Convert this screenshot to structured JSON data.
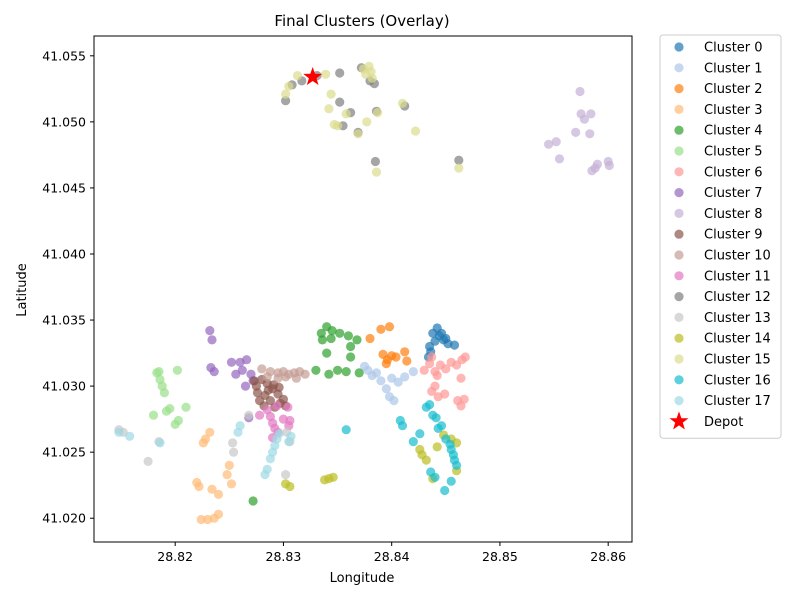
{
  "chart_data": {
    "type": "scatter",
    "title": "Final Clusters (Overlay)",
    "xlabel": "Longitude",
    "ylabel": "Latitude",
    "xlim": [
      28.8125,
      28.8622
    ],
    "ylim": [
      41.0182,
      41.0565
    ],
    "xticks": [
      "28.82",
      "28.83",
      "28.84",
      "28.85",
      "28.86"
    ],
    "yticks": [
      "41.020",
      "41.025",
      "41.030",
      "41.035",
      "41.040",
      "41.045",
      "41.050",
      "41.055"
    ],
    "grid": false,
    "legend_position": "outside-right",
    "series": [
      {
        "name": "Cluster 0",
        "color": "#1f77b4",
        "points": [
          [
            28.8435,
            41.033
          ],
          [
            28.8438,
            41.034
          ],
          [
            28.8442,
            41.0344
          ],
          [
            28.8446,
            41.034
          ],
          [
            28.845,
            41.0336
          ],
          [
            28.8452,
            41.0332
          ],
          [
            28.8436,
            41.0326
          ],
          [
            28.844,
            41.0334
          ],
          [
            28.8444,
            41.0338
          ],
          [
            28.8448,
            41.0335
          ],
          [
            28.8458,
            41.0331
          ],
          [
            28.8434,
            41.0322
          ]
        ]
      },
      {
        "name": "Cluster 1",
        "color": "#aec7e8",
        "points": [
          [
            28.8375,
            41.0315
          ],
          [
            28.8382,
            41.0308
          ],
          [
            28.839,
            41.0304
          ],
          [
            28.8395,
            41.0298
          ],
          [
            28.8398,
            41.0292
          ],
          [
            28.84,
            41.0306
          ],
          [
            28.8406,
            41.0303
          ],
          [
            28.8412,
            41.0307
          ],
          [
            28.842,
            41.0311
          ],
          [
            28.8378,
            41.0312
          ],
          [
            28.8386,
            41.031
          ],
          [
            28.8402,
            41.0289
          ]
        ]
      },
      {
        "name": "Cluster 2",
        "color": "#ff7f0e",
        "points": [
          [
            28.838,
            41.0336
          ],
          [
            28.8392,
            41.0324
          ],
          [
            28.8396,
            41.032
          ],
          [
            28.8398,
            41.0345
          ],
          [
            28.84,
            41.0323
          ],
          [
            28.8404,
            41.0322
          ],
          [
            28.8412,
            41.0326
          ],
          [
            28.8414,
            41.0319
          ],
          [
            28.839,
            41.0343
          ],
          [
            28.8395,
            41.0317
          ]
        ]
      },
      {
        "name": "Cluster 3",
        "color": "#ffbb78",
        "points": [
          [
            28.822,
            41.0227
          ],
          [
            28.8222,
            41.0224
          ],
          [
            28.8228,
            41.026
          ],
          [
            28.8232,
            41.0265
          ],
          [
            28.8234,
            41.0222
          ],
          [
            28.824,
            41.0218
          ],
          [
            28.8248,
            41.0233
          ],
          [
            28.825,
            41.024
          ],
          [
            28.8252,
            41.0226
          ],
          [
            28.8224,
            41.0199
          ],
          [
            28.823,
            41.0199
          ],
          [
            28.8236,
            41.02
          ],
          [
            28.824,
            41.0203
          ],
          [
            28.8226,
            41.0257
          ]
        ]
      },
      {
        "name": "Cluster 4",
        "color": "#2ca02c",
        "points": [
          [
            28.8335,
            41.034
          ],
          [
            28.834,
            41.0345
          ],
          [
            28.8345,
            41.0342
          ],
          [
            28.8352,
            41.034
          ],
          [
            28.836,
            41.0338
          ],
          [
            28.8362,
            41.033
          ],
          [
            28.8368,
            41.0335
          ],
          [
            28.834,
            41.0325
          ],
          [
            28.835,
            41.0312
          ],
          [
            28.8358,
            41.0311
          ],
          [
            28.8362,
            41.0322
          ],
          [
            28.837,
            41.031
          ],
          [
            28.8342,
            41.0309
          ],
          [
            28.833,
            41.0312
          ],
          [
            28.8336,
            41.0335
          ],
          [
            28.8344,
            41.0336
          ],
          [
            28.8272,
            41.0213
          ]
        ]
      },
      {
        "name": "Cluster 5",
        "color": "#98df8a",
        "points": [
          [
            28.8183,
            41.031
          ],
          [
            28.8186,
            41.0305
          ],
          [
            28.8188,
            41.03
          ],
          [
            28.819,
            41.0295
          ],
          [
            28.8192,
            41.0281
          ],
          [
            28.8195,
            41.0283
          ],
          [
            28.82,
            41.0271
          ],
          [
            28.8203,
            41.0274
          ],
          [
            28.821,
            41.0284
          ],
          [
            28.818,
            41.0278
          ],
          [
            28.8202,
            41.0312
          ],
          [
            28.8185,
            41.0311
          ]
        ]
      },
      {
        "name": "Cluster 6",
        "color": "#ff9896",
        "points": [
          [
            28.843,
            41.0312
          ],
          [
            28.8435,
            41.0317
          ],
          [
            28.844,
            41.0311
          ],
          [
            28.8445,
            41.0316
          ],
          [
            28.845,
            41.0313
          ],
          [
            28.8455,
            41.0318
          ],
          [
            28.846,
            41.0316
          ],
          [
            28.8465,
            41.032
          ],
          [
            28.8468,
            41.0322
          ],
          [
            28.844,
            41.03
          ],
          [
            28.8437,
            41.0296
          ],
          [
            28.8443,
            41.0292
          ],
          [
            28.8449,
            41.0294
          ],
          [
            28.8461,
            41.0289
          ],
          [
            28.8464,
            41.0285
          ],
          [
            28.8467,
            41.029
          ],
          [
            28.8464,
            41.0306
          ],
          [
            28.8442,
            41.0308
          ],
          [
            28.8437,
            41.0322
          ]
        ]
      },
      {
        "name": "Cluster 7",
        "color": "#9467bd",
        "points": [
          [
            28.8232,
            41.0342
          ],
          [
            28.8234,
            41.0335
          ],
          [
            28.8233,
            41.0314
          ],
          [
            28.8236,
            41.0311
          ],
          [
            28.8252,
            41.0318
          ],
          [
            28.826,
            41.0318
          ],
          [
            28.8266,
            41.032
          ],
          [
            28.8262,
            41.0312
          ],
          [
            28.827,
            41.0309
          ],
          [
            28.8256,
            41.0309
          ],
          [
            28.8265,
            41.03
          ],
          [
            28.8272,
            41.0304
          ],
          [
            28.8268,
            41.0276
          ]
        ]
      },
      {
        "name": "Cluster 8",
        "color": "#c5b0d5",
        "points": [
          [
            28.8545,
            41.0483
          ],
          [
            28.8552,
            41.0485
          ],
          [
            28.8555,
            41.0472
          ],
          [
            28.857,
            41.0492
          ],
          [
            28.8574,
            41.0523
          ],
          [
            28.8575,
            41.0506
          ],
          [
            28.8578,
            41.0502
          ],
          [
            28.8583,
            41.0491
          ],
          [
            28.8584,
            41.0506
          ],
          [
            28.8585,
            41.0463
          ],
          [
            28.8588,
            41.0465
          ],
          [
            28.859,
            41.0468
          ],
          [
            28.86,
            41.047
          ],
          [
            28.8601,
            41.0467
          ]
        ]
      },
      {
        "name": "Cluster 9",
        "color": "#8c564b",
        "points": [
          [
            28.8275,
            41.03
          ],
          [
            28.828,
            41.0305
          ],
          [
            28.8285,
            41.0302
          ],
          [
            28.829,
            41.0298
          ],
          [
            28.8295,
            41.0294
          ],
          [
            28.83,
            41.029
          ],
          [
            28.8283,
            41.0293
          ],
          [
            28.8288,
            41.0289
          ],
          [
            28.8278,
            41.0289
          ],
          [
            28.8282,
            41.0285
          ],
          [
            28.8292,
            41.0284
          ],
          [
            28.8297,
            41.0287
          ],
          [
            28.8276,
            41.0295
          ],
          [
            28.8286,
            41.0297
          ],
          [
            28.8302,
            41.0285
          ],
          [
            28.8273,
            41.0304
          ],
          [
            28.8291,
            41.0301
          ],
          [
            28.8296,
            41.0299
          ]
        ]
      },
      {
        "name": "Cluster 10",
        "color": "#c49c94",
        "points": [
          [
            28.828,
            41.0313
          ],
          [
            28.8288,
            41.0311
          ],
          [
            28.8295,
            41.031
          ],
          [
            28.83,
            41.0311
          ],
          [
            28.8305,
            41.0309
          ],
          [
            28.831,
            41.031
          ],
          [
            28.8315,
            41.0311
          ],
          [
            28.832,
            41.0309
          ],
          [
            28.8285,
            41.0307
          ],
          [
            28.8302,
            41.0307
          ],
          [
            28.8312,
            41.0306
          ],
          [
            28.8295,
            41.0306
          ]
        ]
      },
      {
        "name": "Cluster 11",
        "color": "#e377c2",
        "points": [
          [
            28.8285,
            41.0282
          ],
          [
            28.8288,
            41.0277
          ],
          [
            28.829,
            41.0272
          ],
          [
            28.8292,
            41.0268
          ],
          [
            28.8295,
            41.0265
          ],
          [
            28.83,
            41.0275
          ],
          [
            28.8305,
            41.027
          ],
          [
            28.8306,
            41.0274
          ],
          [
            28.8304,
            41.0284
          ],
          [
            28.829,
            41.0261
          ],
          [
            28.8294,
            41.0285
          ],
          [
            28.8278,
            41.0278
          ]
        ]
      },
      {
        "name": "Cluster 12",
        "color": "#7f7f7f",
        "points": [
          [
            28.8302,
            41.0516
          ],
          [
            28.8308,
            41.0528
          ],
          [
            28.8317,
            41.0531
          ],
          [
            28.8331,
            41.0535
          ],
          [
            28.8352,
            41.0537
          ],
          [
            28.8352,
            41.0515
          ],
          [
            28.8362,
            41.0507
          ],
          [
            28.8369,
            41.0492
          ],
          [
            28.8372,
            41.0541
          ],
          [
            28.838,
            41.0531
          ],
          [
            28.8384,
            41.0529
          ],
          [
            28.8385,
            41.047
          ],
          [
            28.8386,
            41.0508
          ],
          [
            28.8412,
            41.0512
          ],
          [
            28.8462,
            41.0471
          ],
          [
            28.8355,
            41.0497
          ]
        ]
      },
      {
        "name": "Cluster 13",
        "color": "#c7c7c7",
        "points": [
          [
            28.8148,
            41.0267
          ],
          [
            28.8152,
            41.0265
          ],
          [
            28.8175,
            41.0243
          ],
          [
            28.8185,
            41.0258
          ],
          [
            28.8253,
            41.0257
          ],
          [
            28.8254,
            41.025
          ],
          [
            28.8268,
            41.0278
          ],
          [
            28.8303,
            41.0265
          ],
          [
            28.8306,
            41.0258
          ],
          [
            28.8302,
            41.0233
          ]
        ]
      },
      {
        "name": "Cluster 14",
        "color": "#bcbd22",
        "points": [
          [
            28.8302,
            41.0226
          ],
          [
            28.8306,
            41.0224
          ],
          [
            28.8338,
            41.0229
          ],
          [
            28.8342,
            41.023
          ],
          [
            28.8346,
            41.0231
          ],
          [
            28.8426,
            41.0252
          ],
          [
            28.8428,
            41.0248
          ],
          [
            28.8432,
            41.0244
          ],
          [
            28.8438,
            41.023
          ],
          [
            28.8442,
            41.0254
          ],
          [
            28.8448,
            41.0263
          ],
          [
            28.8455,
            41.026
          ],
          [
            28.846,
            41.0257
          ],
          [
            28.846,
            41.0236
          ]
        ]
      },
      {
        "name": "Cluster 15",
        "color": "#dbdb8d",
        "points": [
          [
            28.8302,
            41.0521
          ],
          [
            28.8305,
            41.0527
          ],
          [
            28.8313,
            41.0535
          ],
          [
            28.8339,
            41.0536
          ],
          [
            28.8342,
            41.051
          ],
          [
            28.8344,
            41.0521
          ],
          [
            28.8347,
            41.0498
          ],
          [
            28.835,
            41.0497
          ],
          [
            28.8358,
            41.0506
          ],
          [
            28.8369,
            41.0491
          ],
          [
            28.8374,
            41.054
          ],
          [
            28.8376,
            41.0536
          ],
          [
            28.8377,
            41.05
          ],
          [
            28.8379,
            41.0542
          ],
          [
            28.8382,
            41.0533
          ],
          [
            28.8386,
            41.0462
          ],
          [
            28.8387,
            41.0507
          ],
          [
            28.841,
            41.0514
          ],
          [
            28.8422,
            41.0493
          ],
          [
            28.8462,
            41.0465
          ],
          [
            28.8381,
            41.0538
          ]
        ]
      },
      {
        "name": "Cluster 16",
        "color": "#17becf",
        "points": [
          [
            28.8408,
            41.0274
          ],
          [
            28.841,
            41.027
          ],
          [
            28.842,
            41.0258
          ],
          [
            28.8426,
            41.0264
          ],
          [
            28.8432,
            41.0284
          ],
          [
            28.8435,
            41.0286
          ],
          [
            28.8438,
            41.0278
          ],
          [
            28.8441,
            41.0276
          ],
          [
            28.8443,
            41.0268
          ],
          [
            28.8446,
            41.027
          ],
          [
            28.845,
            41.026
          ],
          [
            28.8454,
            41.0256
          ],
          [
            28.8455,
            41.0252
          ],
          [
            28.8457,
            41.0248
          ],
          [
            28.8458,
            41.0244
          ],
          [
            28.846,
            41.024
          ],
          [
            28.8436,
            41.0235
          ],
          [
            28.844,
            41.0231
          ],
          [
            28.8449,
            41.0221
          ],
          [
            28.8455,
            41.0228
          ],
          [
            28.8358,
            41.0267
          ]
        ]
      },
      {
        "name": "Cluster 17",
        "color": "#9edae5",
        "points": [
          [
            28.8148,
            41.0265
          ],
          [
            28.8158,
            41.0262
          ],
          [
            28.8186,
            41.0257
          ],
          [
            28.8258,
            41.0265
          ],
          [
            28.826,
            41.027
          ],
          [
            28.8283,
            41.0233
          ],
          [
            28.8285,
            41.0237
          ],
          [
            28.8288,
            41.0245
          ],
          [
            28.829,
            41.025
          ],
          [
            28.8292,
            41.0255
          ],
          [
            28.8294,
            41.026
          ],
          [
            28.8296,
            41.0264
          ],
          [
            28.8305,
            41.0258
          ],
          [
            28.8307,
            41.0262
          ]
        ]
      }
    ],
    "depot": {
      "name": "Depot",
      "color": "#ff0000",
      "x": 28.8327,
      "y": 41.0534
    }
  }
}
